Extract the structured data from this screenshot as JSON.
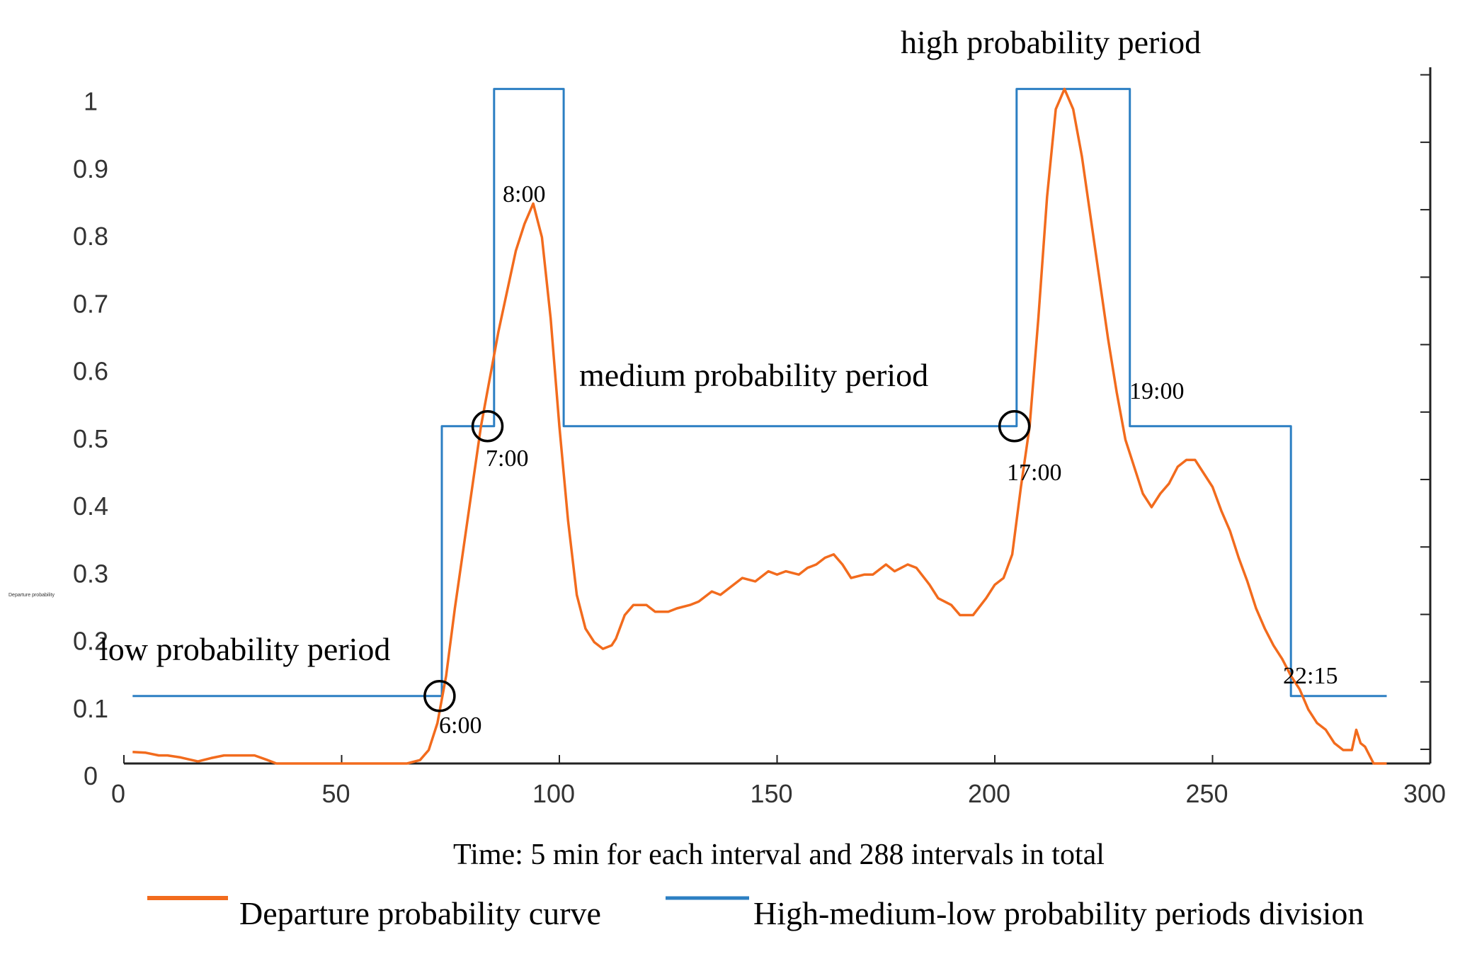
{
  "chart_data": {
    "type": "line",
    "title": "",
    "xlabel": "Time: 5 min for each interval and 288 intervals in total",
    "ylabel": "Departure probability",
    "xlim": [
      0,
      300
    ],
    "ylim": [
      0,
      1.05
    ],
    "x_ticks": [
      0,
      50,
      100,
      150,
      200,
      250,
      300
    ],
    "y_ticks": [
      0,
      0.1,
      0.2,
      0.3,
      0.4,
      0.5,
      0.6,
      0.7,
      0.8,
      0.9,
      1
    ],
    "x_tick_labels": [
      "0",
      "50",
      "100",
      "150",
      "200",
      "250",
      "300"
    ],
    "y_tick_labels": [
      "0",
      "0.1",
      "0.2",
      "0.3",
      "0.4",
      "0.5",
      "0.6",
      "0.7",
      "0.8",
      "0.9",
      "1"
    ],
    "series": [
      {
        "name": "Departure probability curve",
        "color": "#F26B1D",
        "x": [
          2,
          5,
          8,
          10,
          13,
          15,
          17,
          20,
          23,
          25,
          28,
          30,
          33,
          35,
          40,
          50,
          60,
          65,
          68,
          70,
          72,
          74,
          76,
          78,
          80,
          82,
          84,
          86,
          88,
          90,
          92,
          94,
          96,
          98,
          100,
          102,
          104,
          106,
          108,
          110,
          112,
          113,
          115,
          117,
          120,
          122,
          125,
          127,
          130,
          132,
          135,
          137,
          140,
          142,
          145,
          148,
          150,
          152,
          155,
          157,
          159,
          161,
          163,
          165,
          167,
          170,
          172,
          175,
          177,
          180,
          182,
          185,
          187,
          190,
          192,
          195,
          198,
          200,
          202,
          204,
          206,
          208,
          210,
          212,
          214,
          216,
          218,
          220,
          222,
          224,
          226,
          228,
          230,
          232,
          234,
          236,
          238,
          240,
          242,
          244,
          246,
          248,
          250,
          252,
          254,
          256,
          258,
          260,
          262,
          264,
          266,
          268,
          270,
          272,
          274,
          276,
          278,
          280,
          282,
          283,
          284,
          285,
          287,
          290
        ],
        "values": [
          0.017,
          0.016,
          0.012,
          0.012,
          0.009,
          0.006,
          0.003,
          0.008,
          0.012,
          0.012,
          0.012,
          0.012,
          0.005,
          0.0,
          0.0,
          0.0,
          0.0,
          0.0,
          0.005,
          0.02,
          0.06,
          0.13,
          0.23,
          0.32,
          0.41,
          0.5,
          0.57,
          0.64,
          0.7,
          0.76,
          0.8,
          0.83,
          0.78,
          0.66,
          0.5,
          0.36,
          0.25,
          0.2,
          0.18,
          0.17,
          0.175,
          0.185,
          0.22,
          0.235,
          0.235,
          0.225,
          0.225,
          0.23,
          0.235,
          0.24,
          0.255,
          0.25,
          0.265,
          0.275,
          0.27,
          0.285,
          0.28,
          0.285,
          0.28,
          0.29,
          0.295,
          0.305,
          0.31,
          0.295,
          0.275,
          0.28,
          0.28,
          0.295,
          0.285,
          0.295,
          0.29,
          0.265,
          0.245,
          0.235,
          0.22,
          0.22,
          0.245,
          0.265,
          0.275,
          0.31,
          0.41,
          0.5,
          0.66,
          0.84,
          0.97,
          1.0,
          0.97,
          0.9,
          0.81,
          0.72,
          0.63,
          0.55,
          0.48,
          0.44,
          0.4,
          0.38,
          0.4,
          0.415,
          0.44,
          0.45,
          0.45,
          0.43,
          0.41,
          0.375,
          0.345,
          0.305,
          0.27,
          0.23,
          0.2,
          0.175,
          0.155,
          0.13,
          0.11,
          0.08,
          0.06,
          0.05,
          0.03,
          0.02,
          0.02,
          0.05,
          0.03,
          0.025,
          0.0,
          0.0
        ]
      },
      {
        "name": "High-medium-low probability periods division",
        "color": "#2C7FC3",
        "x": [
          2,
          73,
          73,
          85,
          85,
          101,
          101,
          205,
          205,
          231,
          231,
          268,
          268,
          290
        ],
        "values": [
          0.1,
          0.1,
          0.5,
          0.5,
          1.0,
          1.0,
          0.5,
          0.5,
          1.0,
          1.0,
          0.5,
          0.5,
          0.1,
          0.1
        ]
      }
    ],
    "annotations": {
      "low": "low probability period",
      "medium": "medium probability period",
      "high": "high probability period",
      "t600": "6:00",
      "t700": "7:00",
      "t800": "8:00",
      "t1700": "17:00",
      "t1900": "19:00",
      "t2215": "22:15"
    },
    "legend": {
      "position": "bottom",
      "entries": [
        "Departure probability curve",
        "High-medium-low probability periods division"
      ]
    }
  },
  "ylabel_display": "Departure probability"
}
